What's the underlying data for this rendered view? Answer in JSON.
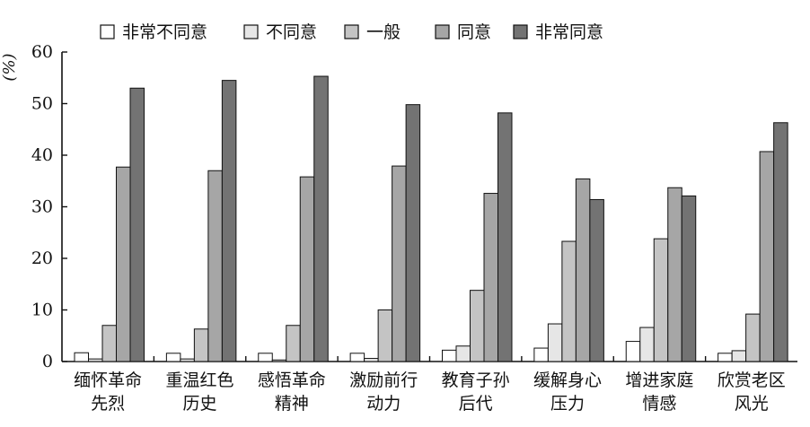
{
  "chart_data": {
    "type": "bar",
    "ylabel": "%",
    "ylim": [
      0,
      60
    ],
    "yticks": [
      "0",
      "10",
      "20",
      "30",
      "40",
      "50",
      "60"
    ],
    "grid": false,
    "legend_placement": "top",
    "categories": [
      [
        "缅怀革命",
        "先烈"
      ],
      [
        "重温红色",
        "历史"
      ],
      [
        "感悟革命",
        "精神"
      ],
      [
        "激励前行",
        "动力"
      ],
      [
        "教育子孙",
        "后代"
      ],
      [
        "缓解身心",
        "压力"
      ],
      [
        "增进家庭",
        "情感"
      ],
      [
        "欣赏老区",
        "风光"
      ]
    ],
    "series": [
      {
        "name": "非常不同意",
        "color": "#ffffff",
        "values": [
          1.7,
          1.6,
          1.6,
          1.6,
          2.2,
          2.6,
          3.9,
          1.6
        ]
      },
      {
        "name": "不同意",
        "color": "#e6e6e6",
        "values": [
          0.5,
          0.5,
          0.3,
          0.6,
          3.0,
          7.3,
          6.6,
          2.1
        ]
      },
      {
        "name": "一般",
        "color": "#c4c4c4",
        "values": [
          7.0,
          6.3,
          7.0,
          10.0,
          13.8,
          23.3,
          23.8,
          9.2
        ]
      },
      {
        "name": "同意",
        "color": "#a6a6a6",
        "values": [
          37.7,
          37.0,
          35.8,
          37.9,
          32.6,
          35.4,
          33.7,
          40.7
        ]
      },
      {
        "name": "非常同意",
        "color": "#737373",
        "values": [
          53.0,
          54.5,
          55.3,
          49.8,
          48.2,
          31.4,
          32.1,
          46.3
        ]
      }
    ]
  }
}
